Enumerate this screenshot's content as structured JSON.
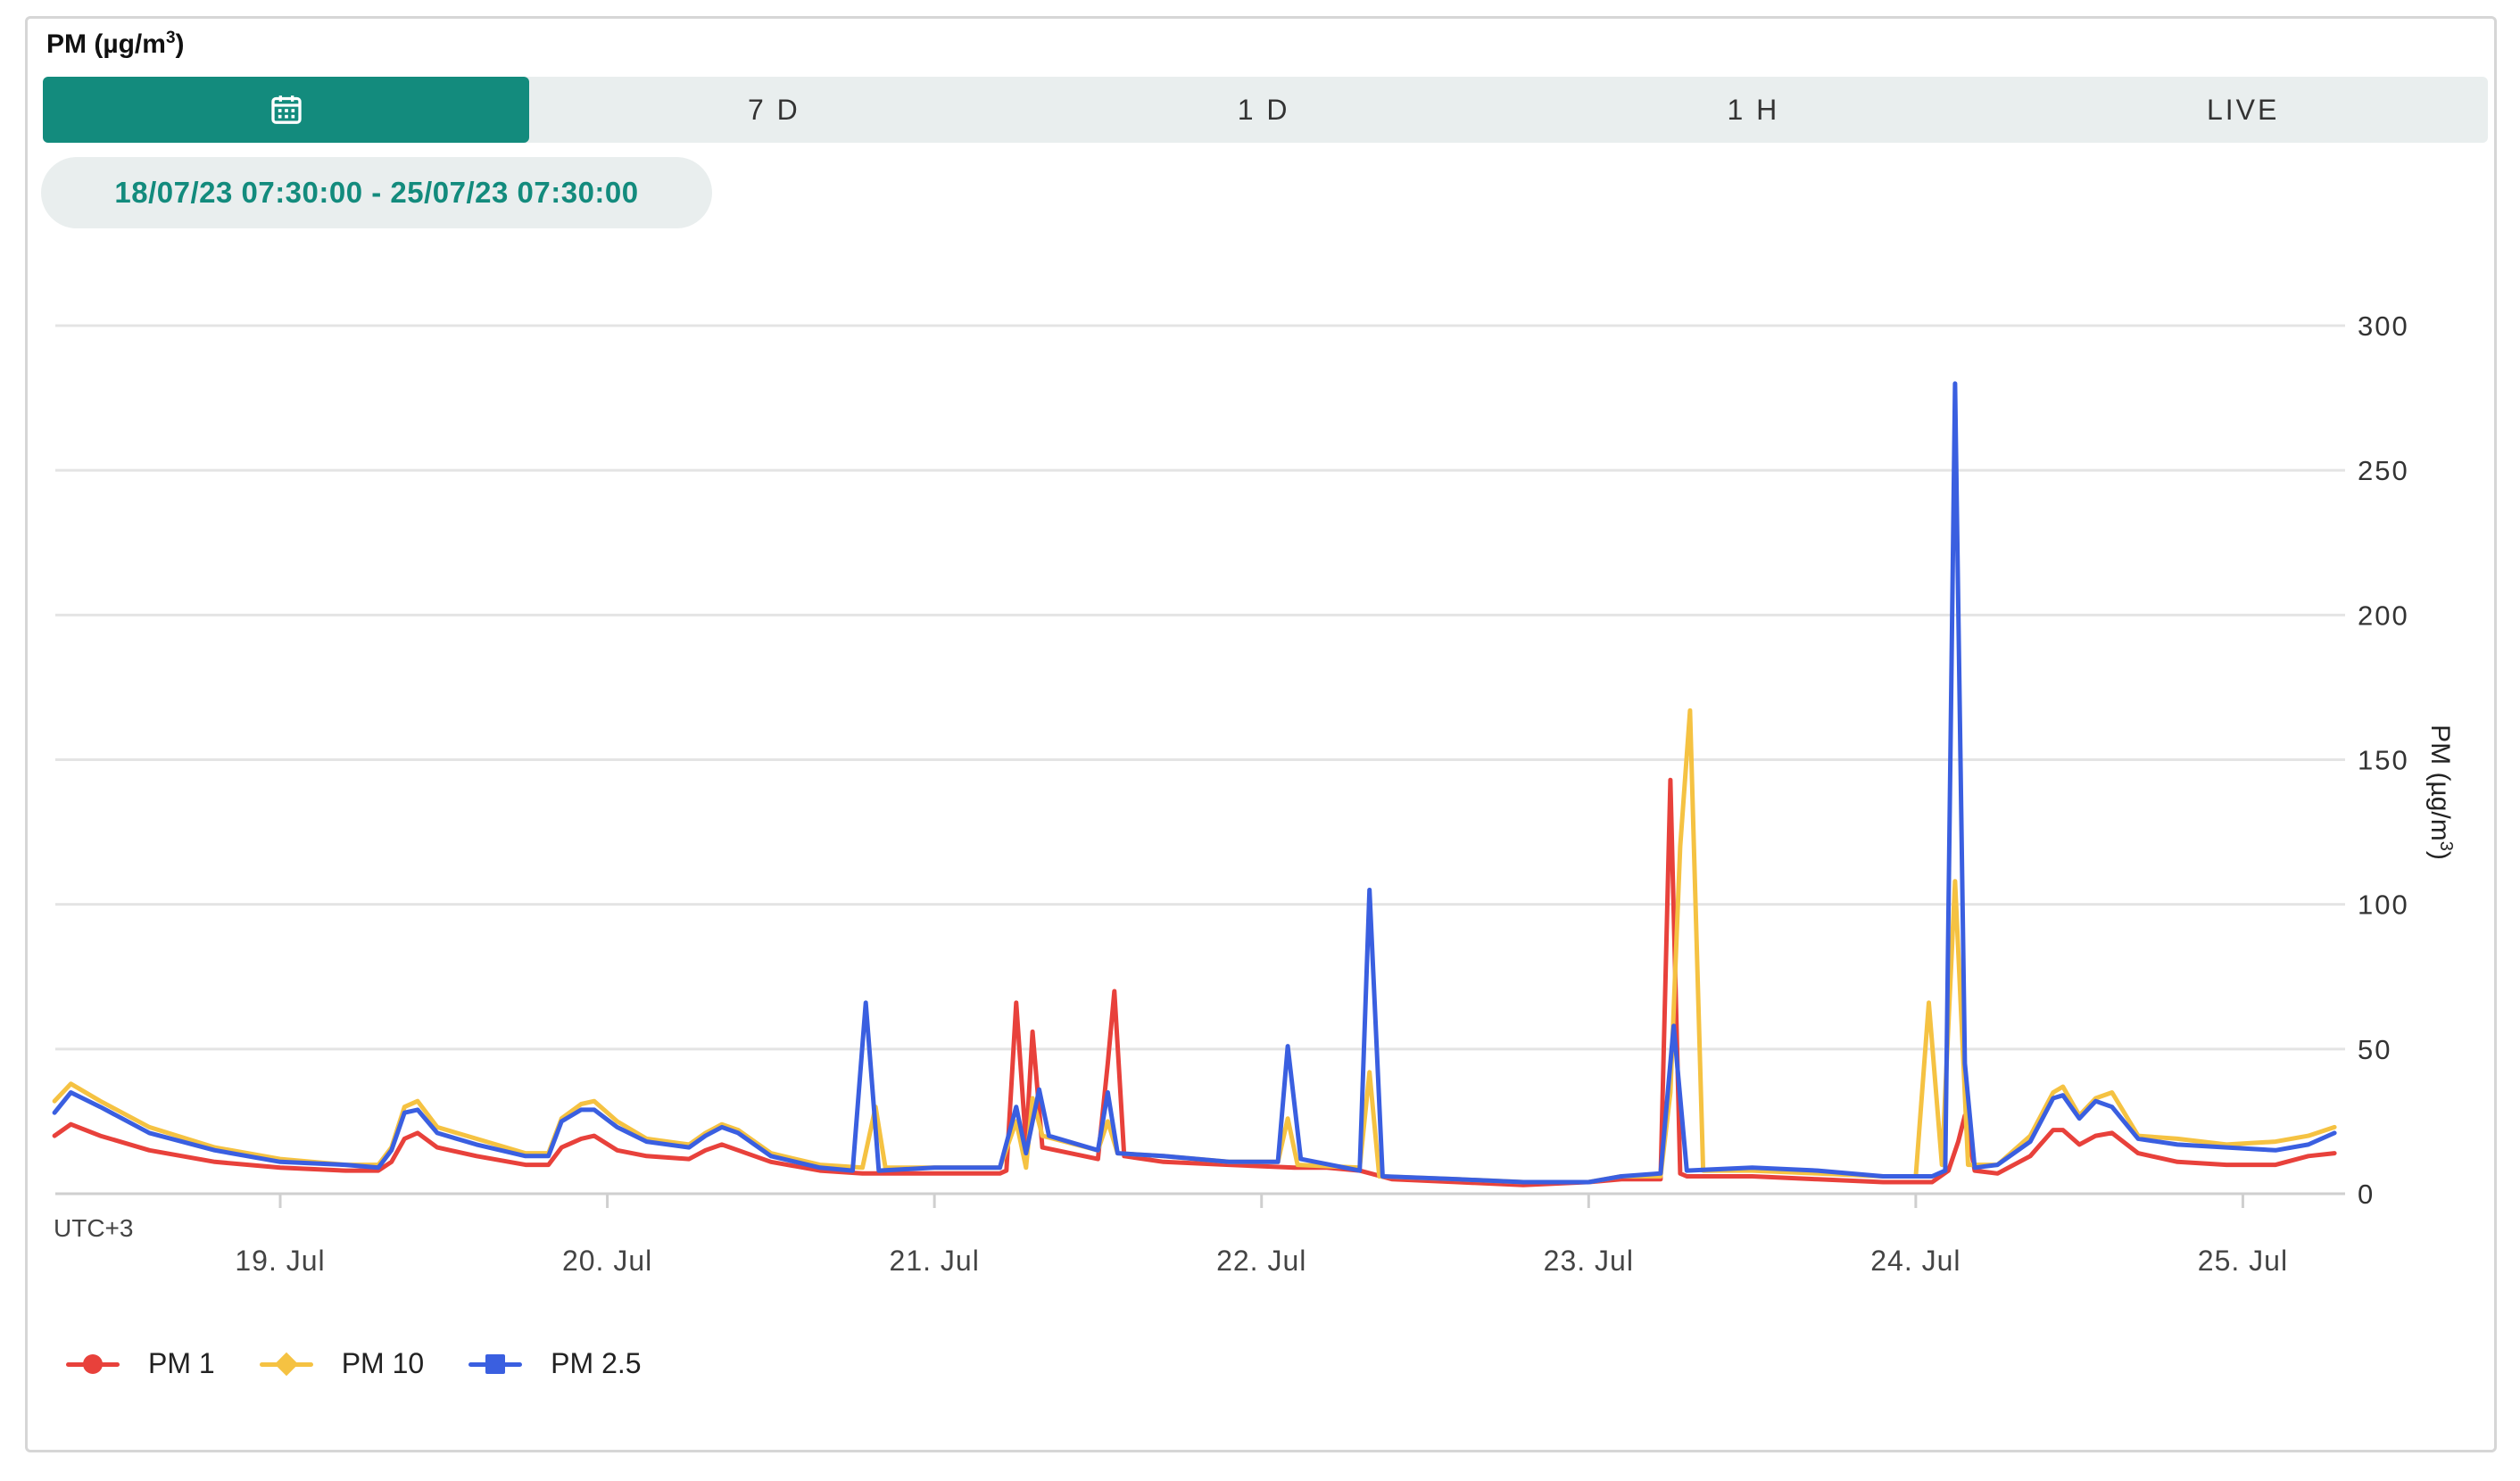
{
  "card": {
    "title": "PM (µg/m",
    "title_sup": "3",
    "title_end": ")"
  },
  "range_buttons": {
    "calendar_icon": "calendar-icon",
    "b7d": "7 D",
    "b1d": "1 D",
    "b1h": "1 H",
    "live": "LIVE"
  },
  "date_range": "18/07/23 07:30:00 - 25/07/23 07:30:00",
  "colors": {
    "accent": "#138b7d",
    "pm1": "#e8413b",
    "pm10": "#f5c242",
    "pm25": "#3a5fe0",
    "grid": "#e4e4e4"
  },
  "chart_data": {
    "type": "line",
    "x_unit": "days since 18 Jul 00:00",
    "xlim": [
      0.3125,
      7.3125
    ],
    "ylim": [
      0,
      300
    ],
    "yticks": [
      0,
      50,
      100,
      150,
      200,
      250,
      300
    ],
    "xticks": [
      {
        "x": 1,
        "label": "19. Jul"
      },
      {
        "x": 2,
        "label": "20. Jul"
      },
      {
        "x": 3,
        "label": "21. Jul"
      },
      {
        "x": 4,
        "label": "22. Jul"
      },
      {
        "x": 5,
        "label": "23. Jul"
      },
      {
        "x": 6,
        "label": "24. Jul"
      },
      {
        "x": 7,
        "label": "25. Jul"
      }
    ],
    "ylabel": "PM (µg/m",
    "ylabel_sup": "3",
    "ylabel_end": ")",
    "timezone_label": "UTC+3",
    "grid": true,
    "legend_position": "bottom-left",
    "series": [
      {
        "name": "PM 1",
        "color": "#e8413b",
        "marker": "circle",
        "points": [
          [
            0.31,
            20
          ],
          [
            0.36,
            24
          ],
          [
            0.45,
            20
          ],
          [
            0.6,
            15
          ],
          [
            0.8,
            11
          ],
          [
            1.0,
            9
          ],
          [
            1.2,
            8
          ],
          [
            1.3,
            8
          ],
          [
            1.34,
            11
          ],
          [
            1.38,
            19
          ],
          [
            1.42,
            21
          ],
          [
            1.48,
            16
          ],
          [
            1.6,
            13
          ],
          [
            1.75,
            10
          ],
          [
            1.82,
            10
          ],
          [
            1.86,
            16
          ],
          [
            1.92,
            19
          ],
          [
            1.96,
            20
          ],
          [
            2.03,
            15
          ],
          [
            2.12,
            13
          ],
          [
            2.25,
            12
          ],
          [
            2.3,
            15
          ],
          [
            2.35,
            17
          ],
          [
            2.4,
            15
          ],
          [
            2.5,
            11
          ],
          [
            2.65,
            8
          ],
          [
            2.78,
            7
          ],
          [
            2.85,
            7
          ],
          [
            3.0,
            7
          ],
          [
            3.2,
            7
          ],
          [
            3.22,
            8
          ],
          [
            3.25,
            66
          ],
          [
            3.28,
            17
          ],
          [
            3.3,
            56
          ],
          [
            3.33,
            16
          ],
          [
            3.5,
            12
          ],
          [
            3.53,
            45
          ],
          [
            3.55,
            70
          ],
          [
            3.58,
            13
          ],
          [
            3.7,
            11
          ],
          [
            3.9,
            10
          ],
          [
            4.1,
            9
          ],
          [
            4.2,
            9
          ],
          [
            4.3,
            8
          ],
          [
            4.4,
            5
          ],
          [
            4.6,
            4
          ],
          [
            4.8,
            3
          ],
          [
            5.0,
            4
          ],
          [
            5.1,
            5
          ],
          [
            5.22,
            5
          ],
          [
            5.25,
            143
          ],
          [
            5.28,
            7
          ],
          [
            5.3,
            6
          ],
          [
            5.5,
            6
          ],
          [
            5.7,
            5
          ],
          [
            5.9,
            4
          ],
          [
            6.05,
            4
          ],
          [
            6.1,
            8
          ],
          [
            6.13,
            18
          ],
          [
            6.15,
            27
          ],
          [
            6.18,
            8
          ],
          [
            6.25,
            7
          ],
          [
            6.35,
            13
          ],
          [
            6.42,
            22
          ],
          [
            6.45,
            22
          ],
          [
            6.5,
            17
          ],
          [
            6.55,
            20
          ],
          [
            6.6,
            21
          ],
          [
            6.68,
            14
          ],
          [
            6.8,
            11
          ],
          [
            6.95,
            10
          ],
          [
            7.1,
            10
          ],
          [
            7.2,
            13
          ],
          [
            7.28,
            14
          ]
        ]
      },
      {
        "name": "PM 10",
        "color": "#f5c242",
        "marker": "diamond",
        "points": [
          [
            0.31,
            32
          ],
          [
            0.36,
            38
          ],
          [
            0.45,
            32
          ],
          [
            0.6,
            23
          ],
          [
            0.8,
            16
          ],
          [
            1.0,
            12
          ],
          [
            1.2,
            10
          ],
          [
            1.3,
            10
          ],
          [
            1.34,
            16
          ],
          [
            1.38,
            30
          ],
          [
            1.42,
            32
          ],
          [
            1.48,
            23
          ],
          [
            1.6,
            19
          ],
          [
            1.75,
            14
          ],
          [
            1.82,
            14
          ],
          [
            1.86,
            26
          ],
          [
            1.92,
            31
          ],
          [
            1.96,
            32
          ],
          [
            2.03,
            25
          ],
          [
            2.12,
            19
          ],
          [
            2.25,
            17
          ],
          [
            2.3,
            21
          ],
          [
            2.35,
            24
          ],
          [
            2.4,
            22
          ],
          [
            2.5,
            14
          ],
          [
            2.65,
            10
          ],
          [
            2.78,
            9
          ],
          [
            2.82,
            30
          ],
          [
            2.85,
            9
          ],
          [
            3.0,
            9
          ],
          [
            3.2,
            9
          ],
          [
            3.25,
            25
          ],
          [
            3.28,
            9
          ],
          [
            3.3,
            33
          ],
          [
            3.33,
            20
          ],
          [
            3.5,
            15
          ],
          [
            3.53,
            25
          ],
          [
            3.56,
            14
          ],
          [
            3.7,
            13
          ],
          [
            3.9,
            11
          ],
          [
            4.05,
            11
          ],
          [
            4.08,
            26
          ],
          [
            4.11,
            10
          ],
          [
            4.3,
            9
          ],
          [
            4.33,
            42
          ],
          [
            4.36,
            6
          ],
          [
            4.6,
            5
          ],
          [
            4.8,
            4
          ],
          [
            5.0,
            4
          ],
          [
            5.1,
            6
          ],
          [
            5.22,
            6
          ],
          [
            5.25,
            35
          ],
          [
            5.28,
            120
          ],
          [
            5.31,
            167
          ],
          [
            5.35,
            8
          ],
          [
            5.5,
            8
          ],
          [
            5.7,
            7
          ],
          [
            5.9,
            6
          ],
          [
            6.0,
            6
          ],
          [
            6.04,
            66
          ],
          [
            6.08,
            10
          ],
          [
            6.12,
            108
          ],
          [
            6.16,
            10
          ],
          [
            6.25,
            10
          ],
          [
            6.35,
            20
          ],
          [
            6.42,
            35
          ],
          [
            6.45,
            37
          ],
          [
            6.5,
            27
          ],
          [
            6.55,
            33
          ],
          [
            6.6,
            35
          ],
          [
            6.68,
            20
          ],
          [
            6.8,
            19
          ],
          [
            6.95,
            17
          ],
          [
            7.1,
            18
          ],
          [
            7.2,
            20
          ],
          [
            7.28,
            23
          ]
        ]
      },
      {
        "name": "PM 2.5",
        "color": "#3a5fe0",
        "marker": "square",
        "points": [
          [
            0.31,
            28
          ],
          [
            0.36,
            35
          ],
          [
            0.45,
            30
          ],
          [
            0.6,
            21
          ],
          [
            0.8,
            15
          ],
          [
            1.0,
            11
          ],
          [
            1.2,
            10
          ],
          [
            1.3,
            9
          ],
          [
            1.34,
            15
          ],
          [
            1.38,
            28
          ],
          [
            1.42,
            29
          ],
          [
            1.48,
            21
          ],
          [
            1.6,
            17
          ],
          [
            1.75,
            13
          ],
          [
            1.82,
            13
          ],
          [
            1.86,
            25
          ],
          [
            1.92,
            29
          ],
          [
            1.96,
            29
          ],
          [
            2.03,
            23
          ],
          [
            2.12,
            18
          ],
          [
            2.25,
            16
          ],
          [
            2.3,
            20
          ],
          [
            2.35,
            23
          ],
          [
            2.4,
            21
          ],
          [
            2.5,
            13
          ],
          [
            2.65,
            9
          ],
          [
            2.75,
            8
          ],
          [
            2.79,
            66
          ],
          [
            2.83,
            8
          ],
          [
            3.0,
            9
          ],
          [
            3.2,
            9
          ],
          [
            3.25,
            30
          ],
          [
            3.28,
            14
          ],
          [
            3.32,
            36
          ],
          [
            3.35,
            20
          ],
          [
            3.5,
            15
          ],
          [
            3.53,
            35
          ],
          [
            3.56,
            14
          ],
          [
            3.7,
            13
          ],
          [
            3.9,
            11
          ],
          [
            4.05,
            11
          ],
          [
            4.08,
            51
          ],
          [
            4.12,
            12
          ],
          [
            4.3,
            8
          ],
          [
            4.33,
            105
          ],
          [
            4.37,
            6
          ],
          [
            4.6,
            5
          ],
          [
            4.8,
            4
          ],
          [
            5.0,
            4
          ],
          [
            5.1,
            6
          ],
          [
            5.22,
            7
          ],
          [
            5.26,
            58
          ],
          [
            5.3,
            8
          ],
          [
            5.5,
            9
          ],
          [
            5.7,
            8
          ],
          [
            5.9,
            6
          ],
          [
            6.05,
            6
          ],
          [
            6.09,
            8
          ],
          [
            6.12,
            280
          ],
          [
            6.15,
            45
          ],
          [
            6.18,
            9
          ],
          [
            6.25,
            10
          ],
          [
            6.35,
            18
          ],
          [
            6.42,
            33
          ],
          [
            6.45,
            34
          ],
          [
            6.5,
            26
          ],
          [
            6.55,
            32
          ],
          [
            6.6,
            30
          ],
          [
            6.68,
            19
          ],
          [
            6.8,
            17
          ],
          [
            6.95,
            16
          ],
          [
            7.1,
            15
          ],
          [
            7.2,
            17
          ],
          [
            7.28,
            21
          ]
        ]
      }
    ]
  }
}
